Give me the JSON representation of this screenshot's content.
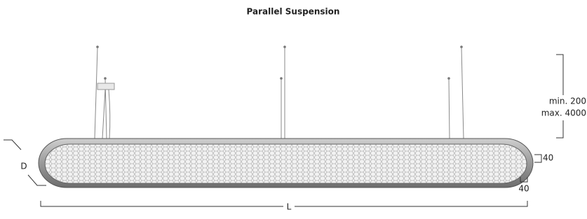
{
  "title": "Parallel Suspension",
  "dimensions": {
    "height": [
      "min. 200",
      "max. 4000"
    ],
    "profile_height": "40",
    "frame_width": "40",
    "depth": "D",
    "length": "L"
  }
}
